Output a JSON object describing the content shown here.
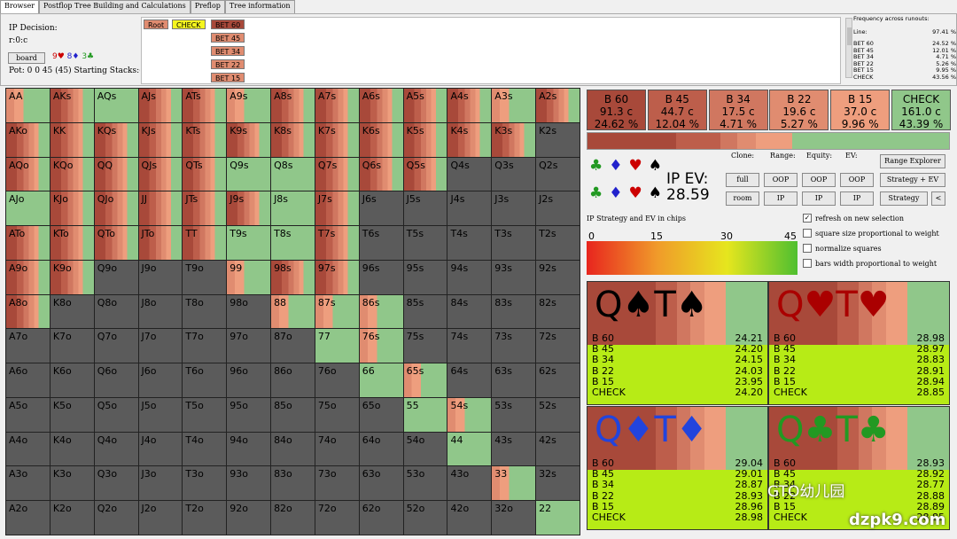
{
  "tabs": [
    "Browser",
    "Postflop Tree Building and Calculations",
    "Preflop",
    "Tree information"
  ],
  "decision": {
    "title": "IP Decision:",
    "line": "r:0:c",
    "board_button": "board",
    "board_cards": [
      {
        "text": "9♥",
        "color": "#cc0000"
      },
      {
        "text": "8♦",
        "color": "#2222cc"
      },
      {
        "text": "3♣",
        "color": "#229922"
      }
    ],
    "pot": "Pot: 0 0 45 (45) Starting Stacks:("
  },
  "tree": {
    "root": "Root",
    "check": "CHECK",
    "bets": [
      "BET 60",
      "BET 45",
      "BET 34",
      "BET 22",
      "BET 15"
    ]
  },
  "frequency": {
    "title": "Frequency across runouts:",
    "line_label": "Line:",
    "line_value": "97.41 %",
    "rows": [
      [
        "BET 60",
        "24.52 %"
      ],
      [
        "BET 45",
        "12.01 %"
      ],
      [
        "BET 34",
        "4.71 %"
      ],
      [
        "BET 22",
        "5.26 %"
      ],
      [
        "BET 15",
        "9.95 %"
      ],
      [
        "CHECK",
        "43.56 %"
      ]
    ]
  },
  "grid_labels": [
    [
      "AA",
      "AKs",
      "AQs",
      "AJs",
      "ATs",
      "A9s",
      "A8s",
      "A7s",
      "A6s",
      "A5s",
      "A4s",
      "A3s",
      "A2s"
    ],
    [
      "AKo",
      "KK",
      "KQs",
      "KJs",
      "KTs",
      "K9s",
      "K8s",
      "K7s",
      "K6s",
      "K5s",
      "K4s",
      "K3s",
      "K2s"
    ],
    [
      "AQo",
      "KQo",
      "QQ",
      "QJs",
      "QTs",
      "Q9s",
      "Q8s",
      "Q7s",
      "Q6s",
      "Q5s",
      "Q4s",
      "Q3s",
      "Q2s"
    ],
    [
      "AJo",
      "KJo",
      "QJo",
      "JJ",
      "JTs",
      "J9s",
      "J8s",
      "J7s",
      "J6s",
      "J5s",
      "J4s",
      "J3s",
      "J2s"
    ],
    [
      "ATo",
      "KTo",
      "QTo",
      "JTo",
      "TT",
      "T9s",
      "T8s",
      "T7s",
      "T6s",
      "T5s",
      "T4s",
      "T3s",
      "T2s"
    ],
    [
      "A9o",
      "K9o",
      "Q9o",
      "J9o",
      "T9o",
      "99",
      "98s",
      "97s",
      "96s",
      "95s",
      "94s",
      "93s",
      "92s"
    ],
    [
      "A8o",
      "K8o",
      "Q8o",
      "J8o",
      "T8o",
      "98o",
      "88",
      "87s",
      "86s",
      "85s",
      "84s",
      "83s",
      "82s"
    ],
    [
      "A7o",
      "K7o",
      "Q7o",
      "J7o",
      "T7o",
      "97o",
      "87o",
      "77",
      "76s",
      "75s",
      "74s",
      "73s",
      "72s"
    ],
    [
      "A6o",
      "K6o",
      "Q6o",
      "J6o",
      "T6o",
      "96o",
      "86o",
      "76o",
      "66",
      "65s",
      "64s",
      "63s",
      "62s"
    ],
    [
      "A5o",
      "K5o",
      "Q5o",
      "J5o",
      "T5o",
      "95o",
      "85o",
      "75o",
      "65o",
      "55",
      "54s",
      "53s",
      "52s"
    ],
    [
      "A4o",
      "K4o",
      "Q4o",
      "J4o",
      "T4o",
      "94o",
      "84o",
      "74o",
      "64o",
      "54o",
      "44",
      "43s",
      "42s"
    ],
    [
      "A3o",
      "K3o",
      "Q3o",
      "J3o",
      "T3o",
      "93o",
      "83o",
      "73o",
      "63o",
      "53o",
      "43o",
      "33",
      "32s"
    ],
    [
      "A2o",
      "K2o",
      "Q2o",
      "J2o",
      "T2o",
      "92o",
      "82o",
      "72o",
      "62o",
      "52o",
      "42o",
      "32o",
      "22"
    ]
  ],
  "grid_strategy": [
    [
      "m",
      "b",
      "g",
      "b",
      "b",
      "m",
      "b",
      "b",
      "b",
      "b",
      "b",
      "m",
      "b"
    ],
    [
      "b",
      "b",
      "b",
      "b",
      "b",
      "b",
      "b",
      "b",
      "b",
      "b",
      "b",
      "b",
      "n"
    ],
    [
      "b",
      "b",
      "b",
      "b",
      "b",
      "g",
      "g",
      "b",
      "b",
      "b",
      "n",
      "n",
      "n"
    ],
    [
      "g",
      "b",
      "b",
      "b",
      "b",
      "b",
      "g",
      "b",
      "n",
      "n",
      "n",
      "n",
      "n"
    ],
    [
      "b",
      "b",
      "b",
      "b",
      "b",
      "g",
      "g",
      "b",
      "n",
      "n",
      "n",
      "n",
      "n"
    ],
    [
      "b",
      "b",
      "n",
      "n",
      "n",
      "m",
      "b",
      "b",
      "n",
      "n",
      "n",
      "n",
      "n"
    ],
    [
      "b",
      "n",
      "n",
      "n",
      "n",
      "n",
      "m",
      "m",
      "m",
      "n",
      "n",
      "n",
      "n"
    ],
    [
      "n",
      "n",
      "n",
      "n",
      "n",
      "n",
      "n",
      "g",
      "m",
      "n",
      "n",
      "n",
      "n"
    ],
    [
      "n",
      "n",
      "n",
      "n",
      "n",
      "n",
      "n",
      "n",
      "g",
      "m",
      "n",
      "n",
      "n"
    ],
    [
      "n",
      "n",
      "n",
      "n",
      "n",
      "n",
      "n",
      "n",
      "n",
      "g",
      "m",
      "n",
      "n"
    ],
    [
      "n",
      "n",
      "n",
      "n",
      "n",
      "n",
      "n",
      "n",
      "n",
      "n",
      "g",
      "n",
      "n"
    ],
    [
      "n",
      "n",
      "n",
      "n",
      "n",
      "n",
      "n",
      "n",
      "n",
      "n",
      "n",
      "m",
      "n"
    ],
    [
      "n",
      "n",
      "n",
      "n",
      "n",
      "n",
      "n",
      "n",
      "n",
      "n",
      "n",
      "n",
      "g"
    ]
  ],
  "actions": [
    {
      "name": "B 60",
      "chips": "91.3 c",
      "pct": "24.62 %",
      "color": "#a8493a"
    },
    {
      "name": "B 45",
      "chips": "44.7 c",
      "pct": "12.04 %",
      "color": "#bd5e4b"
    },
    {
      "name": "B 34",
      "chips": "17.5 c",
      "pct": "4.71 %",
      "color": "#d07760"
    },
    {
      "name": "B 22",
      "chips": "19.6 c",
      "pct": "5.27 %",
      "color": "#e08c70"
    },
    {
      "name": "B 15",
      "chips": "37.0 c",
      "pct": "9.96 %",
      "color": "#ee9e7e"
    },
    {
      "name": "CHECK",
      "chips": "161.0 c",
      "pct": "43.39 %",
      "color": "#90c78a"
    }
  ],
  "suits": [
    {
      "s": "♣",
      "c": "#229922"
    },
    {
      "s": "♦",
      "c": "#2222cc"
    },
    {
      "s": "♥",
      "c": "#cc0000"
    },
    {
      "s": "♠",
      "c": "#000000"
    }
  ],
  "ev": {
    "label": "IP EV:",
    "value": "28.59"
  },
  "clone": {
    "labels": [
      "Clone:",
      "Range:",
      "Equity:",
      "EV:"
    ],
    "full": "full",
    "room": "room",
    "oop": "OOP",
    "ip": "IP",
    "range_explorer": "Range Explorer",
    "strategy_ev": "Strategy + EV",
    "strategy": "Strategy",
    "back": "<"
  },
  "gradient": {
    "title": "IP Strategy and EV in chips",
    "ticks": [
      "0",
      "15",
      "30",
      "45"
    ]
  },
  "options": [
    {
      "label": "refresh on new selection",
      "checked": true
    },
    {
      "label": "square size proportional to weight",
      "checked": false
    },
    {
      "label": "normalize squares",
      "checked": false
    },
    {
      "label": "bars width proportional to weight",
      "checked": false
    }
  ],
  "combos": [
    {
      "title": "Q♠T♠",
      "color": "#000000",
      "rows": [
        [
          "B 60",
          "24.21"
        ],
        [
          "B 45",
          "24.20"
        ],
        [
          "B 34",
          "24.15"
        ],
        [
          "B 22",
          "24.03"
        ],
        [
          "B 15",
          "23.95"
        ],
        [
          "CHECK",
          "24.20"
        ]
      ]
    },
    {
      "title": "Q♥T♥",
      "color": "#aa0000",
      "rows": [
        [
          "B 60",
          "28.98"
        ],
        [
          "B 45",
          "28.97"
        ],
        [
          "B 34",
          "28.83"
        ],
        [
          "B 22",
          "28.91"
        ],
        [
          "B 15",
          "28.94"
        ],
        [
          "CHECK",
          "28.85"
        ]
      ]
    },
    {
      "title": "Q♦T♦",
      "color": "#2244dd",
      "rows": [
        [
          "B 60",
          "29.04"
        ],
        [
          "B 45",
          "29.01"
        ],
        [
          "B 34",
          "28.87"
        ],
        [
          "B 22",
          "28.93"
        ],
        [
          "B 15",
          "28.96"
        ],
        [
          "CHECK",
          "28.98"
        ]
      ]
    },
    {
      "title": "Q♣T♣",
      "color": "#229922",
      "rows": [
        [
          "B 60",
          "28.93"
        ],
        [
          "B 45",
          "28.92"
        ],
        [
          "B 34",
          "28.77"
        ],
        [
          "B 22",
          "28.88"
        ],
        [
          "B 15",
          "28.89"
        ],
        [
          "CHECK",
          "28.85"
        ]
      ]
    }
  ],
  "watermark": {
    "brand": "GTO幼儿园",
    "url": "dzpk9.com"
  }
}
